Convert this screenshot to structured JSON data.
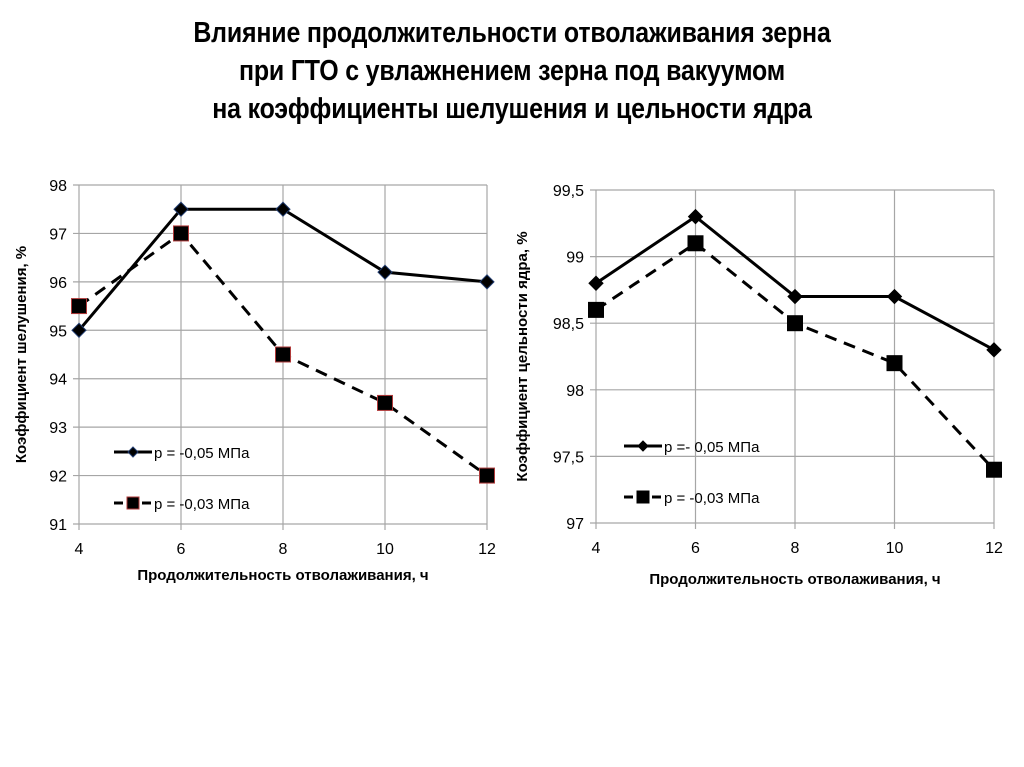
{
  "title": {
    "lines": [
      "Влияние продолжительности отволаживания зерна",
      "при ГТО с увлажнением зерна под вакуумом",
      "на коэффициенты шелушения и цельности ядра"
    ]
  },
  "colors": {
    "grid": "#a6a6a6",
    "line": "#000000",
    "left_diamond_outline": "#1f3a6e",
    "left_square_outline": "#b03a3a"
  },
  "chart_data": [
    {
      "type": "line",
      "title": "",
      "xlabel": "Продолжительность отволаживания, ч",
      "ylabel": "Коэффициент шелушения, %",
      "x": [
        4,
        6,
        8,
        10,
        12
      ],
      "xticks": [
        "4",
        "6",
        "8",
        "10",
        "12"
      ],
      "yticks": [
        "91",
        "92",
        "93",
        "94",
        "95",
        "96",
        "97",
        "98"
      ],
      "ylim": [
        91,
        98
      ],
      "xlim": [
        4,
        12
      ],
      "grid": true,
      "legend_position": "lower-left inside",
      "series": [
        {
          "name": "p = -0,05 МПа",
          "marker": "diamond",
          "line": "solid",
          "values": [
            95.0,
            97.5,
            97.5,
            96.2,
            96.0
          ]
        },
        {
          "name": "p = -0,03 МПа",
          "marker": "square",
          "line": "dashed",
          "values": [
            95.5,
            97.0,
            94.5,
            93.5,
            92.0
          ]
        }
      ]
    },
    {
      "type": "line",
      "title": "",
      "xlabel": "Продолжительность отволаживания, ч",
      "ylabel": "Коэффициент цельности ядра, %",
      "x": [
        4,
        6,
        8,
        10,
        12
      ],
      "xticks": [
        "4",
        "6",
        "8",
        "10",
        "12"
      ],
      "yticks": [
        "97",
        "97,5",
        "98",
        "98,5",
        "99",
        "99,5"
      ],
      "ylim": [
        97,
        99.5
      ],
      "xlim": [
        4,
        12
      ],
      "grid": true,
      "legend_position": "lower-left inside",
      "series": [
        {
          "name": "p =- 0,05 МПа",
          "marker": "diamond",
          "line": "solid",
          "values": [
            98.8,
            99.3,
            98.7,
            98.7,
            98.3
          ]
        },
        {
          "name": "p = -0,03 МПа",
          "marker": "square",
          "line": "dashed",
          "values": [
            98.6,
            99.1,
            98.5,
            98.2,
            97.4
          ]
        }
      ]
    }
  ]
}
